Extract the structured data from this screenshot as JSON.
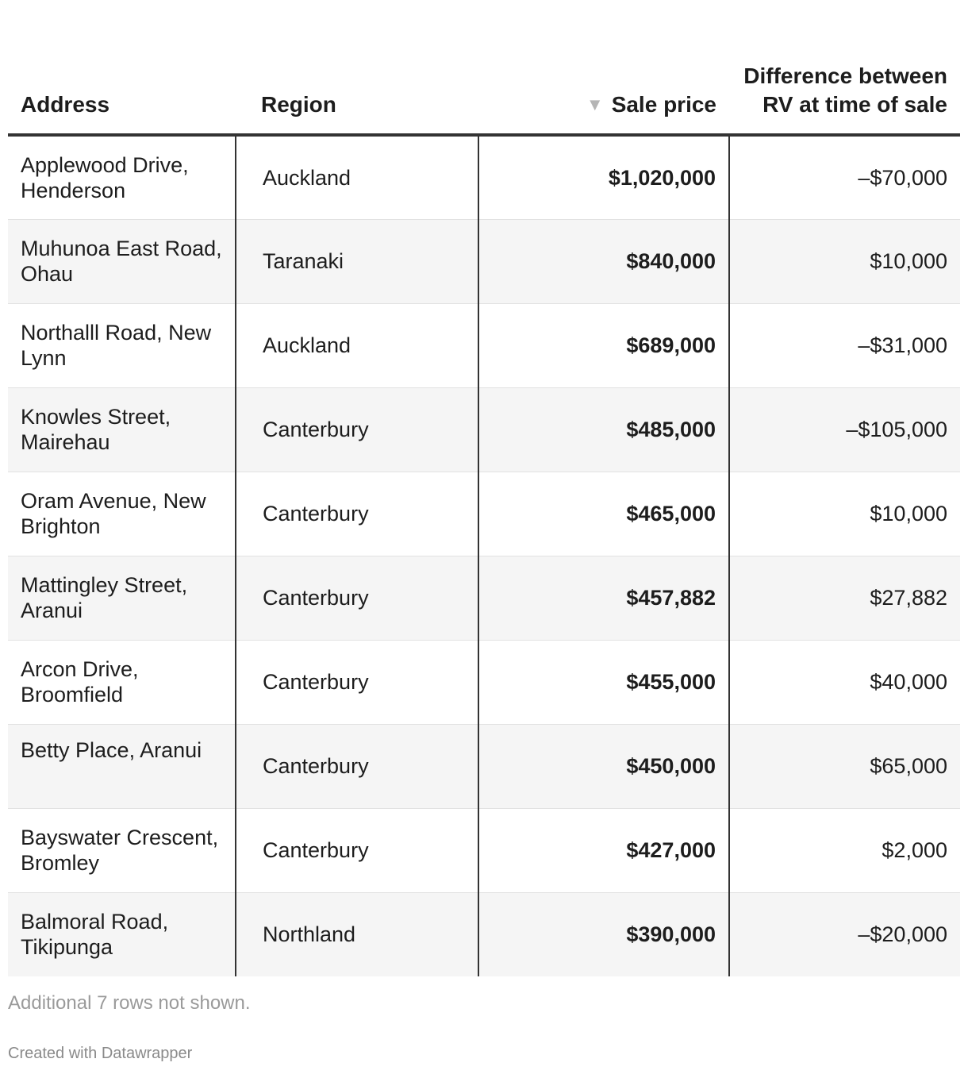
{
  "chart_data": {
    "type": "table",
    "columns": [
      "Address",
      "Region",
      "Sale price",
      "Difference between RV at time of sale"
    ],
    "sort": {
      "column": "Sale price",
      "direction": "descending"
    },
    "rows": [
      {
        "address": "Applewood Drive, Henderson",
        "region": "Auckland",
        "sale_price": "$1,020,000",
        "difference": "–$70,000"
      },
      {
        "address": "Muhunoa East Road, Ohau",
        "region": "Taranaki",
        "sale_price": "$840,000",
        "difference": "$10,000"
      },
      {
        "address": "Northalll Road, New Lynn",
        "region": "Auckland",
        "sale_price": "$689,000",
        "difference": "–$31,000"
      },
      {
        "address": "Knowles Street, Mairehau",
        "region": "Canterbury",
        "sale_price": "$485,000",
        "difference": "–$105,000"
      },
      {
        "address": "Oram Avenue, New Brighton",
        "region": "Canterbury",
        "sale_price": "$465,000",
        "difference": "$10,000"
      },
      {
        "address": "Mattingley Street, Aranui",
        "region": "Canterbury",
        "sale_price": "$457,882",
        "difference": "$27,882"
      },
      {
        "address": "Arcon Drive, Broomfield",
        "region": "Canterbury",
        "sale_price": "$455,000",
        "difference": "$40,000"
      },
      {
        "address": "Betty Place, Aranui",
        "region": "Canterbury",
        "sale_price": "$450,000",
        "difference": "$65,000"
      },
      {
        "address": "Bayswater Crescent, Bromley",
        "region": "Canterbury",
        "sale_price": "$427,000",
        "difference": "$2,000"
      },
      {
        "address": "Balmoral Road, Tikipunga",
        "region": "Northland",
        "sale_price": "$390,000",
        "difference": "–$20,000"
      }
    ],
    "notes": "Additional 7 rows not shown.",
    "credit": "Created with Datawrapper"
  },
  "colors": {
    "text": "#1d1d1d",
    "row_stripe": "#f5f5f5",
    "rule": "#333333",
    "muted": "#9a9a9a"
  },
  "icons": {
    "sort": "sort-descending-icon"
  }
}
